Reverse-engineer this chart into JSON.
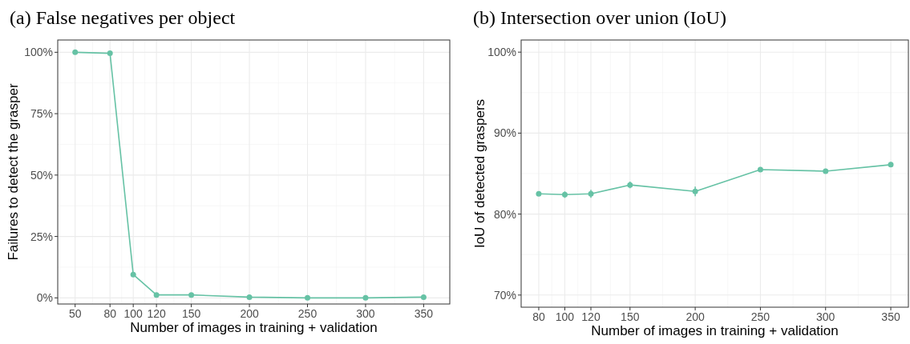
{
  "chart_data": [
    {
      "type": "line",
      "title": "(a) False negatives per object",
      "xlabel": "Number of images in training + validation",
      "ylabel": "Failures to detect the grasper",
      "x": [
        50,
        80,
        100,
        120,
        150,
        200,
        250,
        300,
        350
      ],
      "series": [
        {
          "color": "#66c2a5",
          "values": [
            100,
            99.6,
            9.5,
            1.2,
            1.2,
            0.3,
            0,
            0,
            0.3
          ]
        }
      ],
      "xlim": [
        35,
        372.5
      ],
      "xticks": [
        50,
        80,
        100,
        120,
        150,
        200,
        250,
        300,
        350
      ],
      "ylim": [
        -2.5,
        105
      ],
      "yticks": [
        {
          "value": 0,
          "label": "0%"
        },
        {
          "value": 25,
          "label": "25%"
        },
        {
          "value": 50,
          "label": "50%"
        },
        {
          "value": 75,
          "label": "75%"
        },
        {
          "value": 100,
          "label": "100%"
        }
      ],
      "grid": true,
      "marker": "circle",
      "line_style": "solid"
    },
    {
      "type": "line",
      "title": "(b) Intersection over union (IoU)",
      "xlabel": "Number of images in training + validation",
      "ylabel": "IoU of detected graspers",
      "x": [
        80,
        100,
        120,
        150,
        200,
        250,
        300,
        350
      ],
      "series": [
        {
          "color": "#66c2a5",
          "values": [
            82.5,
            82.4,
            82.5,
            83.6,
            82.8,
            85.5,
            85.3,
            86.1
          ],
          "errors": [
            0.2,
            0.4,
            0.5,
            0.4,
            0.6,
            0.3,
            0.3,
            0.3
          ]
        }
      ],
      "xlim": [
        66.5,
        363.5
      ],
      "xticks": [
        80,
        100,
        120,
        150,
        200,
        250,
        300,
        350
      ],
      "ylim": [
        68.5,
        101.5
      ],
      "yticks": [
        {
          "value": 70,
          "label": "70%"
        },
        {
          "value": 80,
          "label": "80%"
        },
        {
          "value": 90,
          "label": "90%"
        },
        {
          "value": 100,
          "label": "100%"
        }
      ],
      "grid": true,
      "marker": "circle",
      "line_style": "solid"
    }
  ]
}
